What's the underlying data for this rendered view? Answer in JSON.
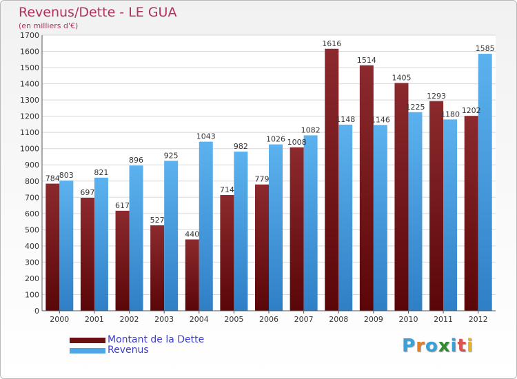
{
  "title": "Revenus/Dette - LE GUA",
  "subtitle": "(en milliers d'€)",
  "colors": {
    "dette": "#7a1a1f",
    "revenus": "#4ea6e6",
    "title": "#b03060",
    "legend_text": "#3c3ccf"
  },
  "legend": [
    {
      "label": "Montant de la Dette",
      "color": "#6b0f12"
    },
    {
      "label": "Revenus",
      "color": "#4ea6e6"
    }
  ],
  "logo": {
    "text": "Proxiti",
    "letter_colors": [
      "#3aa0d8",
      "#e67e22",
      "#3aa0d8",
      "#2e8b2e",
      "#3aa0d8",
      "#d9534f",
      "#e6b422"
    ]
  },
  "chart_data": {
    "type": "bar",
    "categories": [
      "2000",
      "2001",
      "2002",
      "2003",
      "2004",
      "2005",
      "2006",
      "2007",
      "2008",
      "2009",
      "2010",
      "2011",
      "2012"
    ],
    "series": [
      {
        "name": "Montant de la Dette",
        "values": [
          784,
          697,
          617,
          527,
          440,
          714,
          779,
          1008,
          1616,
          1514,
          1405,
          1293,
          1202
        ]
      },
      {
        "name": "Revenus",
        "values": [
          803,
          821,
          896,
          925,
          1043,
          982,
          1026,
          1082,
          1148,
          1146,
          1225,
          1180,
          1585
        ]
      }
    ],
    "data_labels": [
      [
        "784",
        "697",
        "617",
        "527",
        "440",
        "714",
        "779",
        "1008",
        "1616",
        "1514",
        "1405",
        "1293",
        "1202"
      ],
      [
        "803",
        "821",
        "896",
        "925",
        "1043",
        "982",
        "1026",
        "1082",
        "1148",
        "1146",
        "1225",
        "1180",
        "1585"
      ]
    ],
    "title": "Revenus/Dette - LE GUA",
    "subtitle": "(en milliers d'€)",
    "ylim": [
      0,
      1700
    ],
    "yticks": [
      0,
      100,
      200,
      300,
      400,
      500,
      600,
      700,
      800,
      900,
      1000,
      1100,
      1200,
      1300,
      1400,
      1500,
      1600,
      1700
    ],
    "grid": true,
    "legend_position": "bottom-left"
  }
}
